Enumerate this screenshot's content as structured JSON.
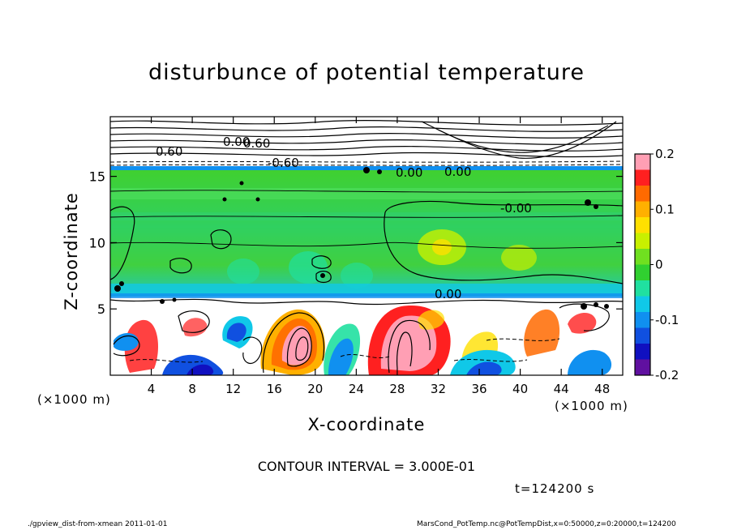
{
  "chart_data": {
    "type": "heatmap",
    "title": "disturbunce of potential temperature",
    "xlabel": "X-coordinate",
    "ylabel": "Z-coordinate",
    "x_unit_left": "(×1000 m)",
    "x_unit_right": "(×1000 m)",
    "xlim": [
      0,
      50
    ],
    "ylim": [
      0,
      19.5
    ],
    "x_ticks": [
      4,
      8,
      12,
      16,
      20,
      24,
      28,
      32,
      36,
      40,
      44,
      48
    ],
    "y_ticks": [
      5,
      10,
      15
    ],
    "colorbar": {
      "min": -0.2,
      "max": 0.2,
      "ticks": [
        "0.2",
        "0.1",
        "0",
        "-0.1",
        "-0.2"
      ],
      "colors": [
        "#ff9fb4",
        "#ff2020",
        "#ff6a00",
        "#ffb000",
        "#ffe000",
        "#c8f000",
        "#70e020",
        "#30d030",
        "#20e0a0",
        "#10c8e8",
        "#1090f0",
        "#1050e0",
        "#1010c0",
        "#6010a0"
      ]
    },
    "contour_labels": [
      "0.60",
      "0.60",
      "-0.60",
      "0.00",
      "0.00",
      "-0.00",
      "0.00",
      "0.00"
    ],
    "contour_interval": "CONTOUR INTERVAL = 3.000E-01",
    "time": "t=124200 s"
  },
  "footer": {
    "left": "./gpview_dist-from-xmean   2011-01-01",
    "right": "MarsCond_PotTemp.nc@PotTempDist,x=0:50000,z=0:20000,t=124200"
  }
}
